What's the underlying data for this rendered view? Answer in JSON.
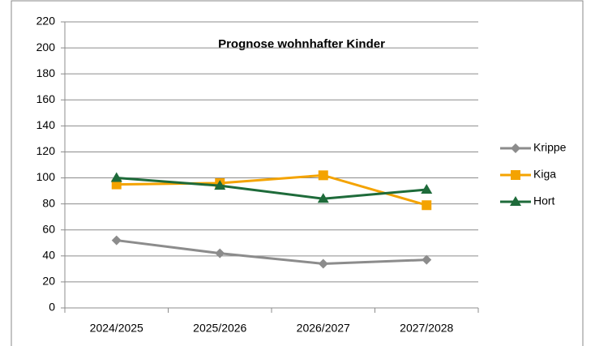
{
  "chart_data": {
    "type": "line",
    "title": "Prognose wohnhafter Kinder",
    "categories": [
      "2024/2025",
      "2025/2026",
      "2026/2027",
      "2027/2028"
    ],
    "series": [
      {
        "name": "Krippe",
        "color": "#8c8c8c",
        "marker": "diamond",
        "values": [
          52,
          42,
          34,
          37
        ]
      },
      {
        "name": "Kiga",
        "color": "#f4a300",
        "marker": "square",
        "values": [
          95,
          96,
          102,
          79
        ]
      },
      {
        "name": "Hort",
        "color": "#1e6b3a",
        "marker": "triangle",
        "values": [
          100,
          94,
          84,
          91
        ]
      }
    ],
    "ylim": [
      0,
      220
    ],
    "yticks": [
      0,
      20,
      40,
      60,
      80,
      100,
      120,
      140,
      160,
      180,
      200,
      220
    ],
    "grid": true,
    "legend": "right"
  }
}
